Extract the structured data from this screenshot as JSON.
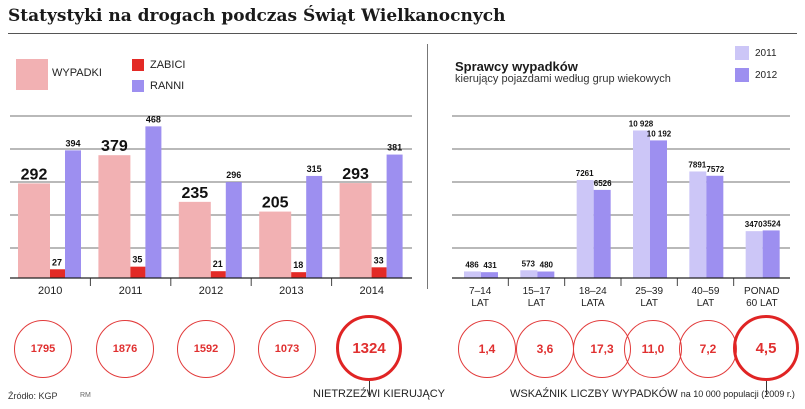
{
  "title": "Statystyki na drogach podczas Świąt Wielkanocnych",
  "colors": {
    "wypadki": "#f2b1b3",
    "zabici": "#e32a26",
    "ranni": "#9d8ff0",
    "y2011": "#ccc6f7",
    "y2012": "#9d8ff0",
    "red": "#e03030"
  },
  "chart_data": [
    {
      "type": "bar",
      "categories": [
        "2010",
        "2011",
        "2012",
        "2013",
        "2014"
      ],
      "series": [
        {
          "name": "WYPADKI",
          "values": [
            292,
            379,
            235,
            205,
            293
          ]
        },
        {
          "name": "ZABICI",
          "values": [
            27,
            35,
            21,
            18,
            33
          ]
        },
        {
          "name": "RANNI",
          "values": [
            394,
            468,
            296,
            315,
            381
          ]
        }
      ],
      "ylim": [
        0,
        500
      ],
      "grid": true
    },
    {
      "type": "bar",
      "title": "Sprawcy wypadków",
      "subtitle": "kierujący pojazdami według grup wiekowych",
      "categories": [
        "7–14 LAT",
        "15–17 LAT",
        "18–24 LATA",
        "25–39 LAT",
        "40–59 LAT",
        "PONAD 60 LAT"
      ],
      "category_lines": [
        [
          "7–14",
          "LAT"
        ],
        [
          "15–17",
          "LAT"
        ],
        [
          "18–24",
          "LATA"
        ],
        [
          "25–39",
          "LAT"
        ],
        [
          "40–59",
          "LAT"
        ],
        [
          "PONAD",
          "60 LAT"
        ]
      ],
      "series": [
        {
          "name": "2011",
          "values": [
            486,
            573,
            7261,
            10928,
            7891,
            3470
          ],
          "labels": [
            "486",
            "573",
            "7261",
            "10 928",
            "7891",
            "3470"
          ]
        },
        {
          "name": "2012",
          "values": [
            431,
            480,
            6526,
            10192,
            7572,
            3524
          ],
          "labels": [
            "431",
            "480",
            "6526",
            "10 192",
            "7572",
            "3524"
          ]
        }
      ],
      "ylim": [
        0,
        12000
      ],
      "grid": true
    }
  ],
  "left_panel": {
    "legend": {
      "wypadki": "WYPADKI",
      "zabici": "ZABICI",
      "ranni": "RANNI"
    },
    "nietrzezwi": [
      "1795",
      "1876",
      "1592",
      "1073",
      "1324"
    ],
    "caption": "NIETRZEŹWI KIERUJĄCY"
  },
  "right_panel": {
    "legend": {
      "y2011": "2011",
      "y2012": "2012"
    },
    "wskaznik": [
      "1,4",
      "3,6",
      "17,3",
      "11,0",
      "7,2",
      "4,5"
    ],
    "caption_main": "WSKAŹNIK LICZBY WYPADKÓW",
    "caption_small": "na 10 000 populacji (2009 r.)"
  },
  "source": "Źródło: KGP",
  "credit": "RM"
}
